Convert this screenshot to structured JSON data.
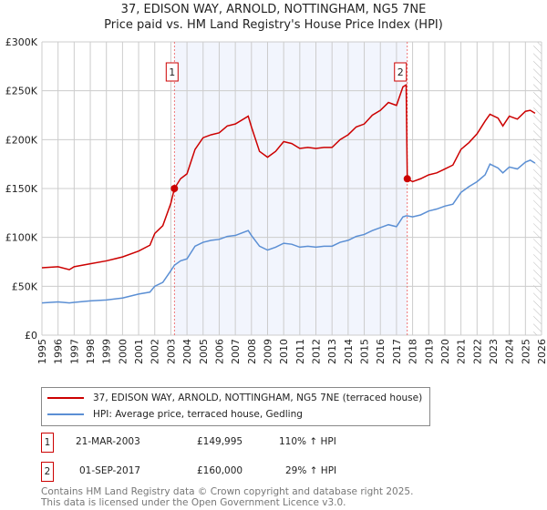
{
  "chart_data": {
    "type": "line",
    "title": "37, EDISON WAY, ARNOLD, NOTTINGHAM, NG5 7NE",
    "subtitle": "Price paid vs. HM Land Registry's House Price Index (HPI)",
    "xlim": [
      1995,
      2026
    ],
    "ylim": [
      0,
      300000
    ],
    "y_ticks": [
      {
        "v": 0,
        "label": "£0"
      },
      {
        "v": 50000,
        "label": "£50K"
      },
      {
        "v": 100000,
        "label": "£100K"
      },
      {
        "v": 150000,
        "label": "£150K"
      },
      {
        "v": 200000,
        "label": "£200K"
      },
      {
        "v": 250000,
        "label": "£250K"
      },
      {
        "v": 300000,
        "label": "£300K"
      }
    ],
    "x_ticks": [
      "1995",
      "1996",
      "1997",
      "1998",
      "1999",
      "2000",
      "2001",
      "2002",
      "2003",
      "2004",
      "2005",
      "2006",
      "2007",
      "2008",
      "2009",
      "2010",
      "2011",
      "2012",
      "2013",
      "2014",
      "2015",
      "2016",
      "2017",
      "2018",
      "2019",
      "2020",
      "2021",
      "2022",
      "2023",
      "2024",
      "2025",
      "2026"
    ],
    "grid": true,
    "shaded_range": [
      2003.22,
      2017.67
    ],
    "hatched_from": 2025.5,
    "series": [
      {
        "name": "37, EDISON WAY, ARNOLD, NOTTINGHAM, NG5 7NE (terraced house)",
        "color": "#cc0000",
        "x": [
          1995,
          1996,
          1996.7,
          1997,
          1998,
          1999,
          2000,
          2001,
          2001.7,
          2002,
          2002.5,
          2003,
          2003.22,
          2003.6,
          2004,
          2004.5,
          2005,
          2005.5,
          2006,
          2006.5,
          2007,
          2007.8,
          2008,
          2008.5,
          2009,
          2009.5,
          2010,
          2010.5,
          2011,
          2011.5,
          2012,
          2012.5,
          2013,
          2013.5,
          2014,
          2014.5,
          2015,
          2015.5,
          2016,
          2016.5,
          2017,
          2017.4,
          2017.6,
          2017.67,
          2018,
          2018.5,
          2019,
          2019.5,
          2020,
          2020.5,
          2021,
          2021.5,
          2022,
          2022.5,
          2022.8,
          2023.3,
          2023.6,
          2024,
          2024.5,
          2025,
          2025.3,
          2025.6
        ],
        "y": [
          69000,
          70000,
          67000,
          70000,
          73000,
          76000,
          80000,
          86000,
          92000,
          104000,
          112000,
          135000,
          149995,
          160000,
          165000,
          190000,
          202000,
          205000,
          207000,
          214000,
          216000,
          224000,
          213000,
          188000,
          182000,
          188000,
          198000,
          196000,
          191000,
          192000,
          191000,
          192000,
          192000,
          200000,
          205000,
          213000,
          216000,
          225000,
          230000,
          238000,
          235000,
          254000,
          256000,
          160000,
          157000,
          160000,
          164000,
          166000,
          170000,
          174000,
          190000,
          197000,
          206000,
          219000,
          226000,
          222000,
          214000,
          224000,
          221000,
          229000,
          230000,
          227000
        ]
      },
      {
        "name": "HPI: Average price, terraced house, Gedling",
        "color": "#5b8fd4",
        "x": [
          1995,
          1996,
          1996.7,
          1997,
          1998,
          1999,
          2000,
          2001,
          2001.7,
          2002,
          2002.5,
          2003,
          2003.22,
          2003.6,
          2004,
          2004.5,
          2005,
          2005.5,
          2006,
          2006.5,
          2007,
          2007.8,
          2008,
          2008.5,
          2009,
          2009.5,
          2010,
          2010.5,
          2011,
          2011.5,
          2012,
          2012.5,
          2013,
          2013.5,
          2014,
          2014.5,
          2015,
          2015.5,
          2016,
          2016.5,
          2017,
          2017.4,
          2017.6,
          2017.67,
          2018,
          2018.5,
          2019,
          2019.5,
          2020,
          2020.5,
          2021,
          2021.5,
          2022,
          2022.5,
          2022.8,
          2023.3,
          2023.6,
          2024,
          2024.5,
          2025,
          2025.3,
          2025.6
        ],
        "y": [
          33000,
          34000,
          33000,
          33500,
          35000,
          36000,
          38000,
          42000,
          44000,
          50000,
          54000,
          66000,
          71500,
          76000,
          78000,
          91000,
          95000,
          97000,
          98000,
          101000,
          102000,
          107000,
          102000,
          91000,
          87000,
          90000,
          94000,
          93000,
          90000,
          91000,
          90000,
          91000,
          91000,
          95000,
          97000,
          101000,
          103000,
          107000,
          110000,
          113000,
          111000,
          121000,
          122000,
          122000,
          121000,
          123000,
          127000,
          129000,
          132000,
          134000,
          146000,
          152000,
          157000,
          164000,
          175000,
          171000,
          166000,
          172000,
          170000,
          177000,
          179000,
          176000
        ]
      }
    ],
    "sales": [
      {
        "id": "1",
        "x": 2003.22,
        "y": 149995,
        "date": "21-MAR-2003",
        "price": "£149,995",
        "hpi": "110% ↑ HPI"
      },
      {
        "id": "2",
        "x": 2017.67,
        "y": 160000,
        "date": "01-SEP-2017",
        "price": "£160,000",
        "hpi": "29% ↑ HPI"
      }
    ]
  },
  "footer": {
    "line1": "Contains HM Land Registry data © Crown copyright and database right 2025.",
    "line2": "This data is licensed under the Open Government Licence v3.0."
  }
}
